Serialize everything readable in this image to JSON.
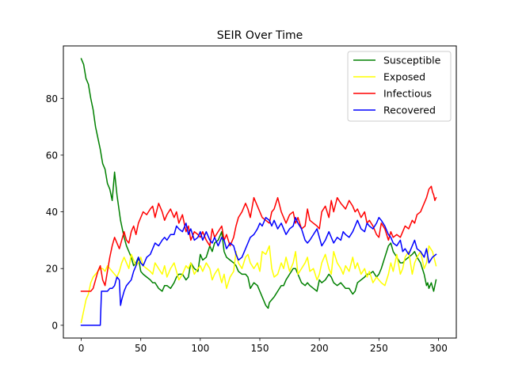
{
  "chart_data": {
    "type": "line",
    "title": "SEIR Over Time",
    "xlabel": "",
    "ylabel": "",
    "xlim": [
      -15,
      315
    ],
    "ylim": [
      -4.5,
      98.5
    ],
    "xticks": [
      0,
      50,
      100,
      150,
      200,
      250,
      300
    ],
    "yticks": [
      0,
      20,
      40,
      60,
      80
    ],
    "grid": false,
    "legend_position": "top-right",
    "series": [
      {
        "name": "Susceptible",
        "color": "#008000",
        "x": [
          0,
          2,
          4,
          6,
          8,
          10,
          12,
          14,
          16,
          18,
          20,
          22,
          24,
          26,
          28,
          30,
          32,
          33,
          34,
          36,
          38,
          40,
          42,
          44,
          46,
          48,
          50,
          52,
          55,
          58,
          60,
          62,
          65,
          68,
          70,
          72,
          75,
          78,
          80,
          82,
          85,
          88,
          90,
          92,
          95,
          98,
          100,
          102,
          105,
          108,
          110,
          112,
          115,
          118,
          120,
          122,
          125,
          128,
          130,
          132,
          135,
          138,
          140,
          142,
          145,
          148,
          150,
          152,
          155,
          157,
          158,
          160,
          162,
          165,
          168,
          170,
          172,
          175,
          178,
          180,
          182,
          185,
          188,
          190,
          192,
          195,
          198,
          200,
          202,
          205,
          208,
          210,
          212,
          215,
          218,
          220,
          222,
          225,
          228,
          230,
          232,
          235,
          238,
          240,
          242,
          245,
          248,
          250,
          252,
          255,
          258,
          260,
          262,
          265,
          268,
          270,
          272,
          275,
          278,
          280,
          282,
          285,
          288,
          290,
          291,
          292,
          294,
          296,
          298
        ],
        "values": [
          94,
          92,
          87,
          85,
          80,
          76,
          70,
          66,
          62,
          57,
          55,
          50,
          48,
          44,
          54,
          46,
          40,
          37,
          35,
          31,
          28,
          26,
          24,
          21,
          22,
          24,
          19,
          18,
          17,
          16,
          15,
          15,
          13,
          12,
          14,
          14,
          13,
          15,
          17,
          18,
          18,
          16,
          17,
          22,
          20,
          19,
          25,
          23,
          24,
          28,
          26,
          29,
          30,
          33,
          26,
          24,
          23,
          22,
          21,
          19,
          18,
          18,
          17,
          13,
          15,
          14,
          12,
          10,
          7,
          6,
          8,
          9,
          10,
          12,
          14,
          14,
          16,
          18,
          20,
          20,
          18,
          15,
          14,
          15,
          14,
          13,
          12,
          16,
          15,
          16,
          18,
          17,
          15,
          14,
          15,
          14,
          13,
          13,
          11,
          12,
          15,
          16,
          17,
          18,
          18,
          19,
          17,
          18,
          20,
          24,
          28,
          29,
          26,
          24,
          22,
          22,
          23,
          24,
          25,
          26,
          24,
          22,
          18,
          14,
          15,
          13,
          15,
          12,
          16
        ]
      },
      {
        "name": "Exposed",
        "color": "#ffff00",
        "x": [
          0,
          2,
          4,
          6,
          8,
          10,
          12,
          14,
          16,
          18,
          20,
          22,
          24,
          26,
          28,
          30,
          32,
          34,
          36,
          38,
          40,
          42,
          44,
          46,
          48,
          50,
          52,
          55,
          58,
          60,
          62,
          65,
          68,
          70,
          72,
          75,
          78,
          80,
          82,
          85,
          88,
          90,
          92,
          95,
          98,
          100,
          102,
          105,
          108,
          110,
          112,
          115,
          118,
          120,
          122,
          125,
          128,
          130,
          132,
          135,
          138,
          140,
          142,
          145,
          148,
          150,
          152,
          155,
          158,
          160,
          162,
          165,
          168,
          170,
          172,
          175,
          178,
          180,
          182,
          185,
          188,
          190,
          192,
          195,
          198,
          200,
          202,
          205,
          208,
          210,
          212,
          215,
          218,
          220,
          222,
          225,
          228,
          230,
          232,
          235,
          238,
          240,
          242,
          245,
          248,
          250,
          252,
          255,
          258,
          260,
          262,
          265,
          268,
          270,
          272,
          275,
          278,
          280,
          282,
          285,
          288,
          290,
          292,
          295,
          298
        ],
        "values": [
          1,
          5,
          9,
          11,
          15,
          17,
          18,
          19,
          20,
          20,
          19,
          21,
          20,
          19,
          18,
          17,
          19,
          22,
          24,
          22,
          20,
          25,
          23,
          21,
          22,
          24,
          21,
          20,
          19,
          18,
          22,
          20,
          18,
          21,
          17,
          20,
          22,
          19,
          16,
          18,
          21,
          20,
          22,
          18,
          20,
          21,
          19,
          22,
          20,
          16,
          18,
          20,
          15,
          18,
          13,
          17,
          19,
          26,
          22,
          20,
          24,
          25,
          22,
          20,
          22,
          19,
          26,
          25,
          28,
          20,
          17,
          18,
          22,
          20,
          24,
          19,
          22,
          26,
          18,
          20,
          22,
          24,
          19,
          20,
          16,
          18,
          22,
          25,
          20,
          18,
          26,
          22,
          20,
          18,
          21,
          19,
          24,
          20,
          22,
          18,
          20,
          17,
          19,
          15,
          17,
          16,
          15,
          14,
          18,
          22,
          19,
          25,
          18,
          20,
          24,
          26,
          18,
          22,
          24,
          26,
          20,
          22,
          28,
          26,
          21
        ]
      },
      {
        "name": "Infectious",
        "color": "#ff0000",
        "x": [
          0,
          2,
          4,
          6,
          8,
          10,
          12,
          14,
          16,
          18,
          20,
          22,
          24,
          26,
          28,
          30,
          32,
          34,
          36,
          38,
          40,
          42,
          44,
          46,
          48,
          50,
          52,
          55,
          58,
          60,
          62,
          65,
          68,
          70,
          72,
          75,
          78,
          80,
          82,
          85,
          88,
          90,
          92,
          95,
          98,
          100,
          102,
          105,
          108,
          110,
          112,
          115,
          118,
          120,
          122,
          125,
          128,
          130,
          132,
          135,
          138,
          140,
          142,
          145,
          148,
          150,
          152,
          155,
          158,
          160,
          162,
          165,
          168,
          170,
          172,
          175,
          178,
          180,
          182,
          185,
          188,
          190,
          192,
          195,
          198,
          200,
          202,
          205,
          208,
          210,
          212,
          215,
          218,
          220,
          222,
          225,
          228,
          230,
          232,
          235,
          238,
          240,
          242,
          245,
          248,
          250,
          252,
          255,
          258,
          260,
          262,
          265,
          268,
          270,
          272,
          275,
          278,
          280,
          282,
          285,
          288,
          290,
          292,
          294,
          295,
          296,
          297,
          298
        ],
        "values": [
          12,
          12,
          12,
          12,
          12,
          13,
          16,
          19,
          21,
          16,
          14,
          19,
          24,
          28,
          31,
          29,
          27,
          30,
          33,
          30,
          29,
          33,
          35,
          32,
          36,
          38,
          40,
          39,
          41,
          42,
          38,
          43,
          40,
          37,
          39,
          41,
          38,
          40,
          36,
          39,
          33,
          35,
          30,
          33,
          32,
          31,
          33,
          30,
          28,
          34,
          31,
          33,
          35,
          30,
          32,
          28,
          31,
          35,
          38,
          40,
          43,
          41,
          38,
          45,
          42,
          40,
          38,
          37,
          36,
          40,
          41,
          45,
          40,
          38,
          36,
          39,
          40,
          36,
          38,
          34,
          35,
          41,
          37,
          36,
          35,
          34,
          40,
          42,
          38,
          44,
          40,
          45,
          43,
          42,
          41,
          44,
          42,
          40,
          41,
          38,
          40,
          36,
          37,
          35,
          32,
          31,
          36,
          34,
          30,
          33,
          31,
          32,
          31,
          33,
          35,
          34,
          37,
          36,
          39,
          40,
          43,
          45,
          48,
          49,
          47,
          46,
          44,
          45
        ]
      },
      {
        "name": "Recovered",
        "color": "#0000ff",
        "x": [
          0,
          2,
          4,
          6,
          8,
          10,
          12,
          14,
          16,
          17,
          18,
          20,
          22,
          24,
          26,
          28,
          30,
          32,
          33,
          34,
          36,
          38,
          40,
          42,
          44,
          46,
          48,
          50,
          52,
          55,
          58,
          60,
          62,
          65,
          68,
          70,
          72,
          75,
          78,
          80,
          82,
          85,
          88,
          90,
          92,
          95,
          98,
          100,
          102,
          105,
          108,
          110,
          112,
          115,
          118,
          120,
          122,
          125,
          128,
          130,
          132,
          135,
          138,
          140,
          142,
          145,
          148,
          150,
          152,
          155,
          158,
          160,
          162,
          165,
          168,
          170,
          172,
          175,
          178,
          180,
          182,
          185,
          188,
          190,
          192,
          195,
          198,
          200,
          202,
          205,
          208,
          210,
          212,
          215,
          218,
          220,
          222,
          225,
          228,
          230,
          232,
          235,
          238,
          240,
          242,
          245,
          248,
          250,
          252,
          255,
          258,
          260,
          262,
          265,
          268,
          270,
          272,
          275,
          278,
          280,
          282,
          285,
          288,
          290,
          292,
          295,
          298
        ],
        "values": [
          0,
          0,
          0,
          0,
          0,
          0,
          0,
          0,
          0,
          12,
          12,
          12,
          12,
          13,
          13,
          14,
          17,
          16,
          7,
          9,
          12,
          14,
          15,
          16,
          19,
          21,
          24,
          22,
          21,
          24,
          25,
          27,
          29,
          28,
          30,
          31,
          30,
          32,
          32,
          35,
          34,
          33,
          36,
          32,
          34,
          30,
          31,
          33,
          30,
          33,
          30,
          29,
          31,
          28,
          31,
          30,
          27,
          29,
          28,
          25,
          23,
          24,
          27,
          29,
          31,
          32,
          34,
          36,
          35,
          38,
          37,
          35,
          37,
          34,
          36,
          34,
          32,
          34,
          35,
          38,
          36,
          34,
          30,
          29,
          30,
          32,
          34,
          31,
          28,
          30,
          33,
          31,
          29,
          31,
          30,
          33,
          32,
          31,
          33,
          35,
          37,
          34,
          33,
          36,
          35,
          34,
          36,
          38,
          37,
          35,
          32,
          31,
          29,
          28,
          30,
          26,
          27,
          25,
          28,
          30,
          27,
          26,
          24,
          27,
          22,
          24,
          25
        ]
      }
    ]
  }
}
